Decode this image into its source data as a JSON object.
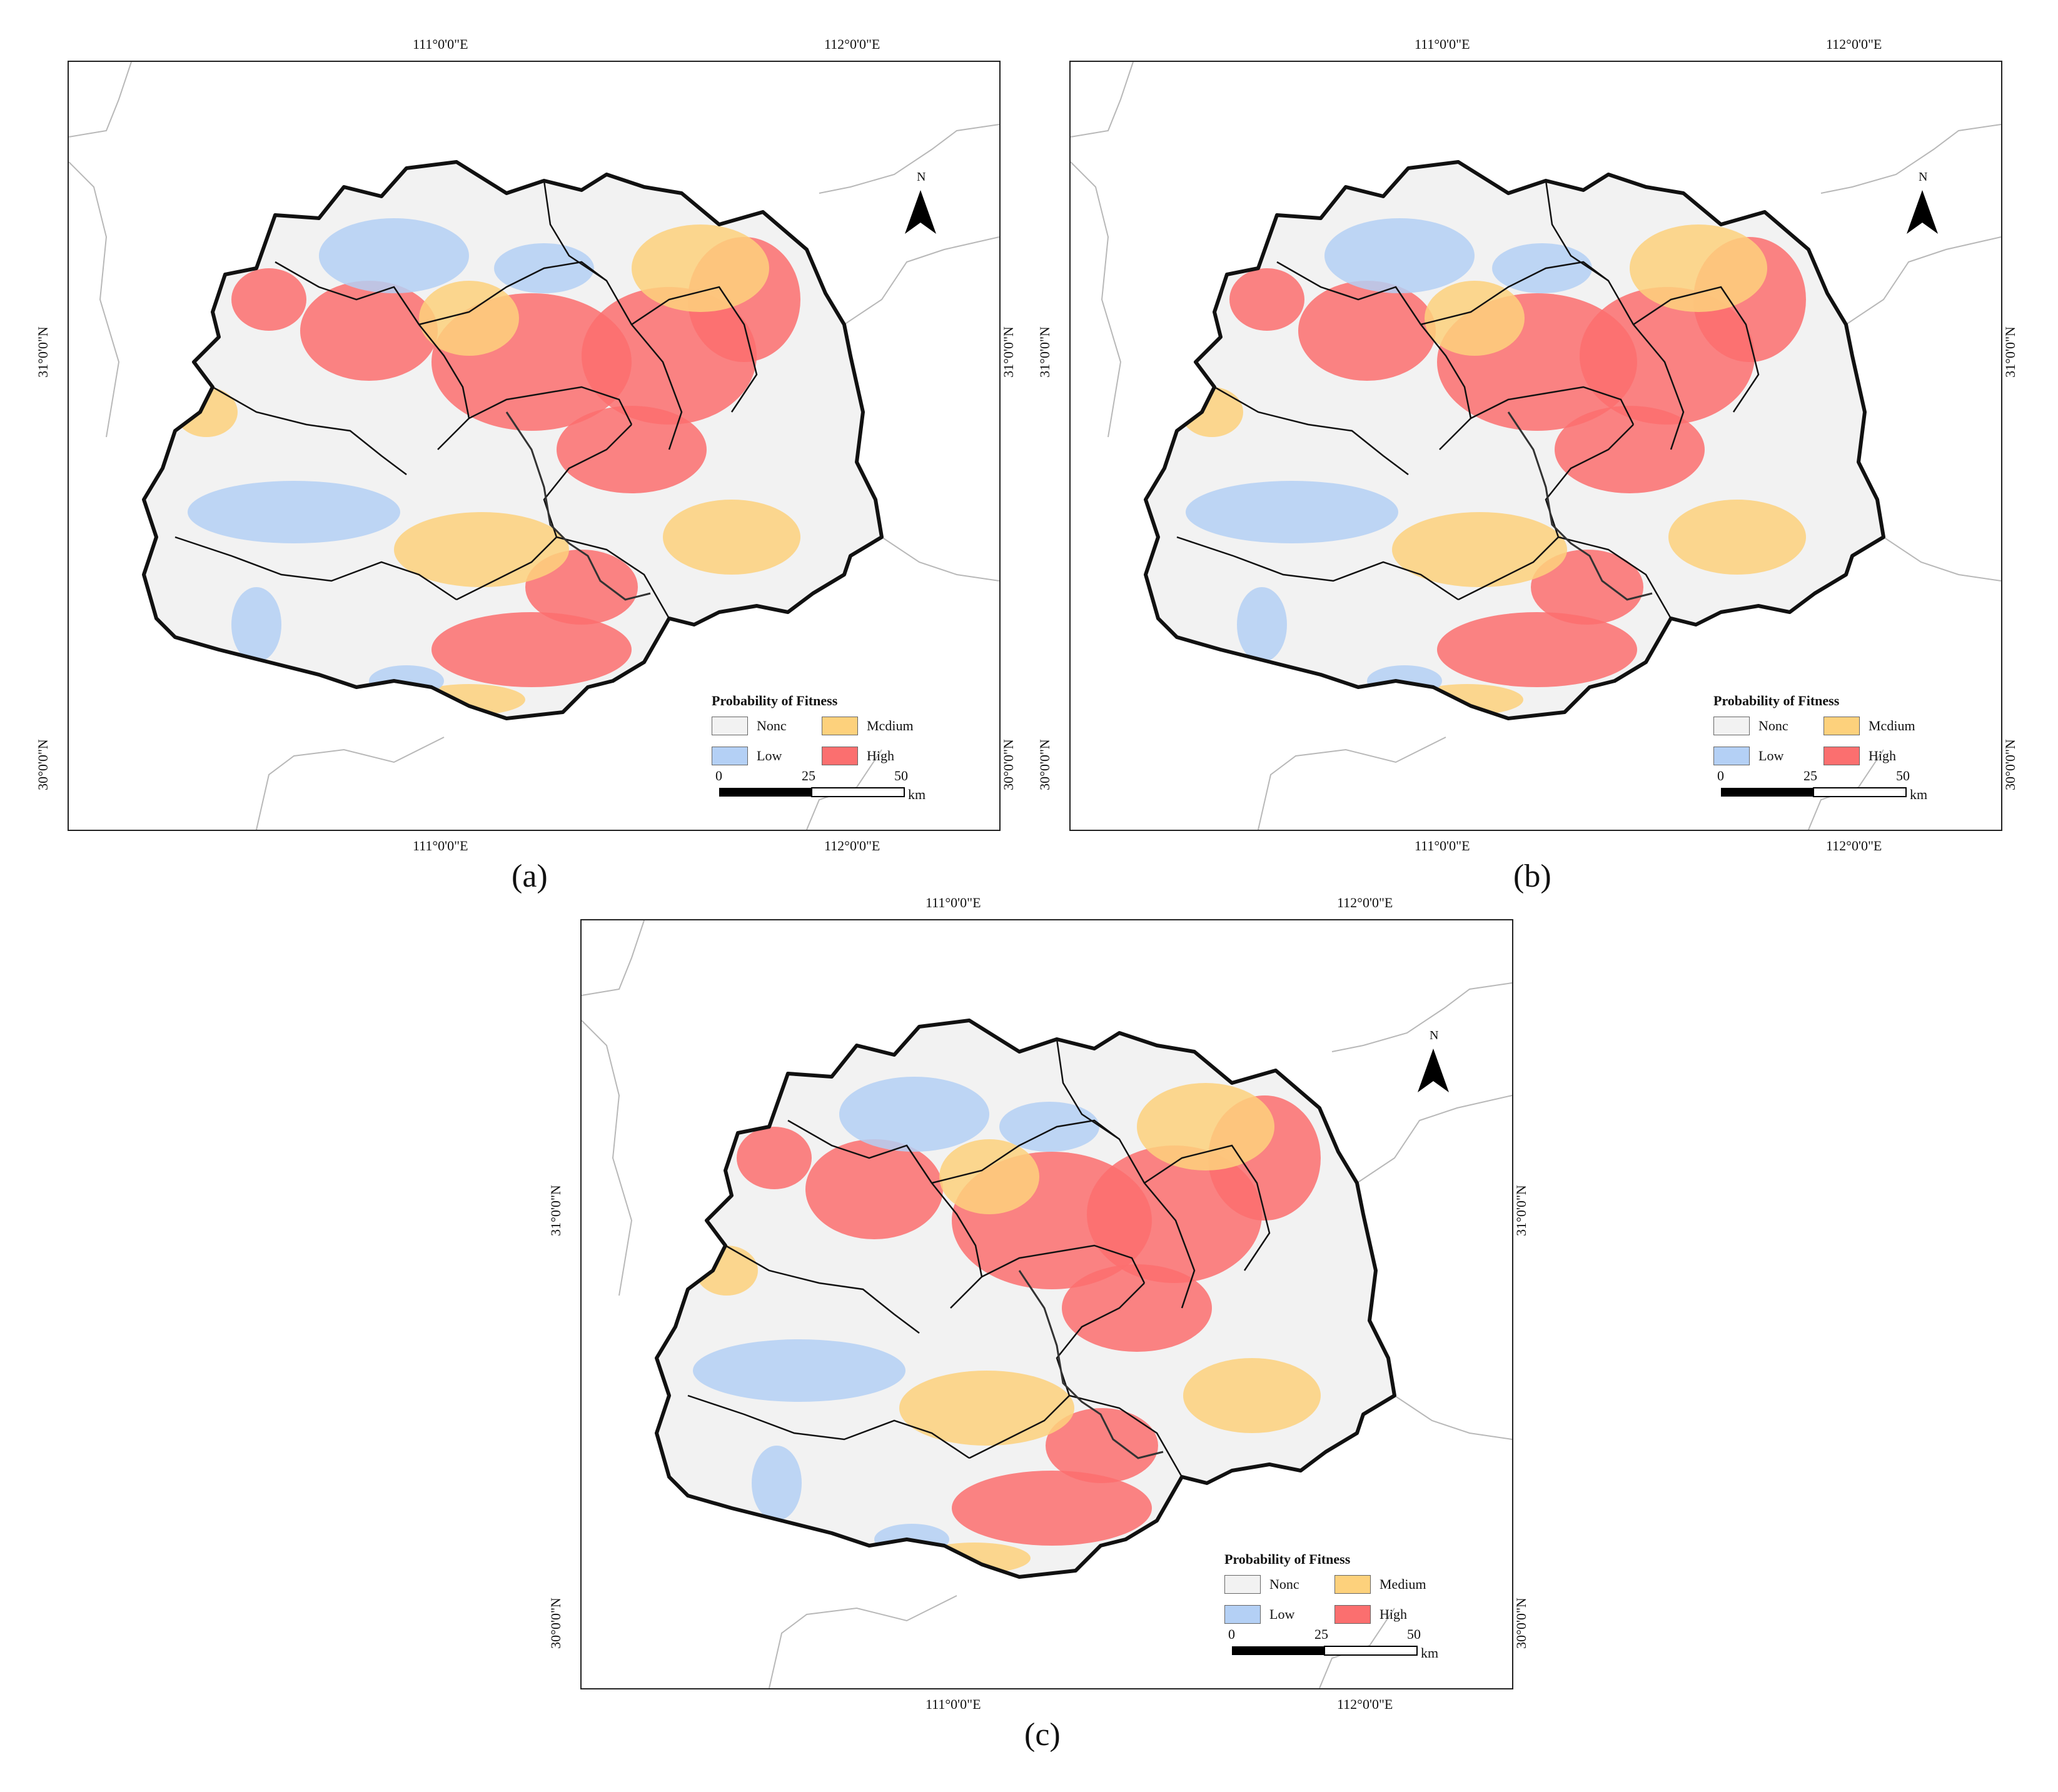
{
  "legend": {
    "title": "Probability of Fitness",
    "items": [
      {
        "key": "none",
        "label": "Nonc",
        "color": "#f2f2f2"
      },
      {
        "key": "medium",
        "label": "Mcdium",
        "color": "#fdd17c"
      },
      {
        "key": "low",
        "label": "Low",
        "color": "#b4d0f5"
      },
      {
        "key": "high",
        "label": "High",
        "color": "#fb6f6f"
      }
    ]
  },
  "legend_c": {
    "items": [
      {
        "label": "Nonc"
      },
      {
        "label": "Medium"
      },
      {
        "label": "Low"
      },
      {
        "label": "High"
      }
    ]
  },
  "axes": {
    "lon_111": "111°0'0\"E",
    "lon_112": "112°0'0\"E",
    "lat_31": "31°0'0\"N",
    "lat_30": "30°0'0\"N"
  },
  "scale_bar": {
    "t0": "0",
    "t25": "25",
    "t50": "50",
    "unit": "km"
  },
  "north_label": "N",
  "panels": [
    {
      "id": "a",
      "caption": "(a)"
    },
    {
      "id": "b",
      "caption": "(b)"
    },
    {
      "id": "c",
      "caption": "(c)"
    }
  ],
  "colors": {
    "outline": "#111111",
    "neighbor": "#b8b8b8",
    "river": "#333333"
  }
}
